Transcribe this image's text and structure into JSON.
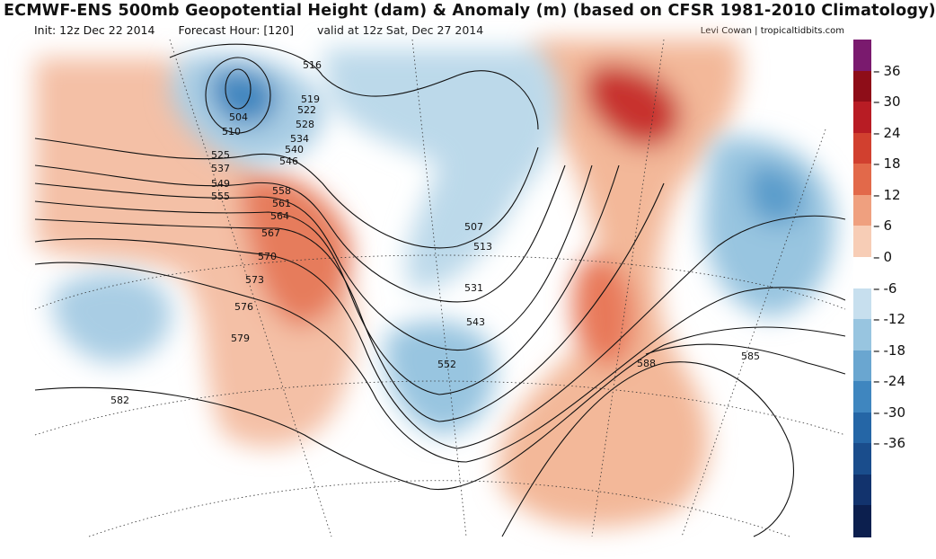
{
  "header": {
    "title": "ECMWF-ENS 500mb Geopotential Height (dam) & Anomaly (m) (based on CFSR 1981-2010 Climatology)",
    "init": "Init: 12z Dec 22 2014",
    "forecast_hour": "Forecast Hour: [120]",
    "valid": "valid at 12z Sat, Dec 27 2014",
    "credit": "Levi Cowan | tropicaltidbits.com"
  },
  "colorbar": {
    "ticks": [
      "36",
      "30",
      "24",
      "18",
      "12",
      "6",
      "0",
      "-6",
      "-12",
      "-18",
      "-24",
      "-30",
      "-36"
    ],
    "colors": [
      "#7a1a6e",
      "#8e0d18",
      "#b81c24",
      "#d1402f",
      "#e2694a",
      "#efa07f",
      "#f7cdb6",
      "#ffffff",
      "#c7dfee",
      "#98c5e0",
      "#6aa6d0",
      "#3f86bf",
      "#2566a6",
      "#1a4d8c",
      "#12336d",
      "#0c1f4e"
    ]
  },
  "height_labels": [
    "504",
    "510",
    "516",
    "519",
    "522",
    "525",
    "528",
    "531",
    "534",
    "537",
    "540",
    "543",
    "546",
    "549",
    "552",
    "555",
    "558",
    "561",
    "564",
    "567",
    "570",
    "573",
    "576",
    "579",
    "582",
    "585",
    "588",
    "507",
    "513"
  ],
  "anomaly_features": [
    {
      "kind": "negative",
      "name": "gulf-of-alaska-low"
    },
    {
      "kind": "negative",
      "name": "north-pacific-low"
    },
    {
      "kind": "negative",
      "name": "southwest-us-trough"
    },
    {
      "kind": "negative",
      "name": "north-atlantic-low"
    },
    {
      "kind": "positive",
      "name": "greenland-ridge"
    },
    {
      "kind": "positive",
      "name": "western-canada-ridge"
    },
    {
      "kind": "positive",
      "name": "east-coast-ridge"
    }
  ]
}
